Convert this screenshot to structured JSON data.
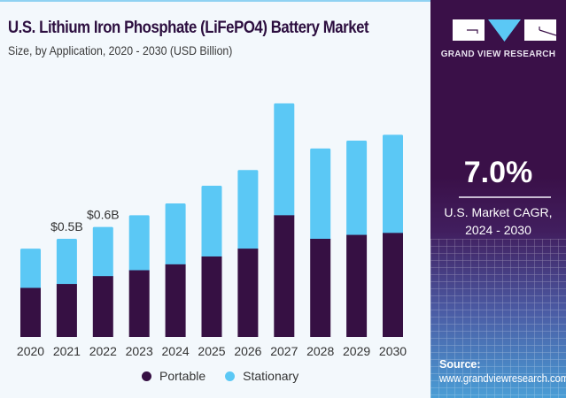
{
  "header": {
    "title": "U.S. Lithium Iron Phosphate (LiFePO4) Battery Market",
    "subtitle": "Size, by Application, 2020 - 2030 (USD Billion)"
  },
  "colors": {
    "portable": "#361043",
    "stationary": "#5bc8f5",
    "panel": "#3a1048",
    "title": "#2c0e3f"
  },
  "sidebar": {
    "logo_icon": "grand-view-research-logo",
    "brand": "GRAND VIEW RESEARCH",
    "cagr_value": "7.0%",
    "cagr_label_line1": "U.S. Market CAGR,",
    "cagr_label_line2": "2024 - 2030",
    "source_heading": "Source:",
    "source_url": "www.grandviewresearch.com"
  },
  "chart_data": {
    "type": "bar",
    "stacked": true,
    "title": "U.S. Lithium Iron Phosphate (LiFePO4) Battery Market",
    "subtitle": "Size, by Application, 2020 - 2030 (USD Billion)",
    "xlabel": "",
    "ylabel": "USD Billion",
    "categories": [
      "2020",
      "2021",
      "2022",
      "2023",
      "2024",
      "2025",
      "2026",
      "2027",
      "2028",
      "2029",
      "2030"
    ],
    "series": [
      {
        "name": "Portable",
        "values": [
          0.25,
          0.27,
          0.31,
          0.34,
          0.37,
          0.41,
          0.45,
          0.62,
          0.5,
          0.52,
          0.53
        ]
      },
      {
        "name": "Stationary",
        "values": [
          0.2,
          0.23,
          0.25,
          0.28,
          0.31,
          0.36,
          0.4,
          0.57,
          0.46,
          0.48,
          0.5
        ]
      }
    ],
    "totals": [
      0.45,
      0.5,
      0.56,
      0.62,
      0.68,
      0.77,
      0.85,
      1.19,
      0.96,
      1.0,
      1.03
    ],
    "annotations": [
      {
        "category": "2021",
        "text": "$0.5B"
      },
      {
        "category": "2022",
        "text": "$0.6B"
      }
    ],
    "ylim": [
      0,
      1.3
    ],
    "grid": false,
    "legend": {
      "position": "bottom",
      "entries": [
        "Portable",
        "Stationary"
      ]
    }
  }
}
